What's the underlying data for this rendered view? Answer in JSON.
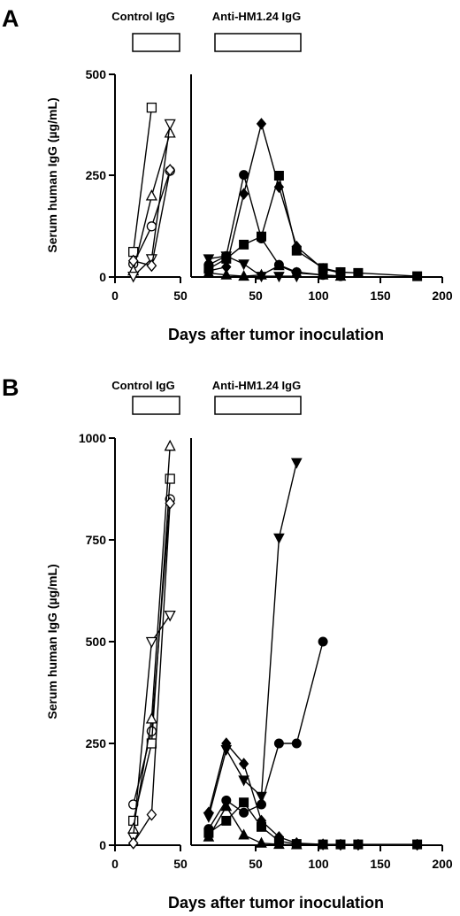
{
  "panels": [
    {
      "letter": "A",
      "legend": {
        "control": "Control IgG",
        "treatment": "Anti-HM1.24 IgG"
      },
      "ylabel": "Serum human IgG (µg/mL)",
      "xlabel": "Days after tumor inoculation",
      "ylim": [
        0,
        500
      ],
      "yticks": [
        "0",
        "250",
        "500"
      ],
      "left_ticks": [
        "0",
        "50"
      ],
      "right_ticks": [
        "50",
        "100",
        "150",
        "200"
      ]
    },
    {
      "letter": "B",
      "legend": {
        "control": "Control IgG",
        "treatment": "Anti-HM1.24 IgG"
      },
      "ylabel": "Serum human IgG (µg/mL)",
      "xlabel": "Days after tumor inoculation",
      "ylim": [
        0,
        1000
      ],
      "yticks": [
        "0",
        "250",
        "500",
        "750",
        "1000"
      ],
      "left_ticks": [
        "0",
        "50"
      ],
      "right_ticks": [
        "50",
        "100",
        "150",
        "200"
      ]
    }
  ],
  "chart_data": [
    {
      "type": "line",
      "xlabel": "Days after tumor inoculation",
      "ylabel": "Serum human IgG (µg/mL)",
      "ylim": [
        0,
        500
      ],
      "control": {
        "xlim": [
          0,
          50
        ],
        "series": [
          {
            "marker": "square-open",
            "x": [
              14,
              28
            ],
            "y": [
              62,
              418
            ]
          },
          {
            "marker": "circle-open",
            "x": [
              14,
              28,
              42
            ],
            "y": [
              32,
              125,
              262
            ]
          },
          {
            "marker": "triangle-open",
            "x": [
              14,
              28,
              42
            ],
            "y": [
              15,
              200,
              355
            ]
          },
          {
            "marker": "triangle-down-open",
            "x": [
              14,
              28,
              42
            ],
            "y": [
              2,
              45,
              378
            ]
          },
          {
            "marker": "diamond-open",
            "x": [
              14,
              28,
              42
            ],
            "y": [
              40,
              28,
              264
            ]
          }
        ]
      },
      "treatment": {
        "xlim": [
          0,
          200
        ],
        "series": [
          {
            "marker": "square-filled",
            "x": [
              14,
              28,
              42,
              56,
              70,
              84,
              105,
              119,
              133,
              180
            ],
            "y": [
              20,
              45,
              80,
              100,
              250,
              65,
              22,
              12,
              10,
              2
            ]
          },
          {
            "marker": "circle-filled",
            "x": [
              14,
              28,
              42,
              56,
              70,
              84,
              105,
              119
            ],
            "y": [
              30,
              52,
              252,
              95,
              30,
              12,
              5,
              2
            ]
          },
          {
            "marker": "diamond-filled",
            "x": [
              14,
              28,
              42,
              56,
              70,
              84,
              105,
              119
            ],
            "y": [
              15,
              25,
              205,
              378,
              222,
              75,
              20,
              10
            ]
          },
          {
            "marker": "triangle-filled",
            "x": [
              14,
              28,
              42,
              56,
              70,
              84,
              105,
              119
            ],
            "y": [
              10,
              5,
              2,
              5,
              28,
              10,
              5,
              2
            ]
          },
          {
            "marker": "triangle-down-filled",
            "x": [
              14,
              28,
              42,
              56,
              70,
              84
            ],
            "y": [
              45,
              52,
              32,
              2,
              2,
              2
            ]
          }
        ]
      }
    },
    {
      "type": "line",
      "xlabel": "Days after tumor inoculation",
      "ylabel": "Serum human IgG (µg/mL)",
      "ylim": [
        0,
        1000
      ],
      "control": {
        "xlim": [
          0,
          50
        ],
        "series": [
          {
            "marker": "circle-open",
            "x": [
              14,
              28,
              42
            ],
            "y": [
              100,
              280,
              850
            ]
          },
          {
            "marker": "square-open",
            "x": [
              14,
              28,
              42
            ],
            "y": [
              60,
              250,
              900
            ]
          },
          {
            "marker": "triangle-open",
            "x": [
              14,
              28,
              42
            ],
            "y": [
              40,
              310,
              980
            ]
          },
          {
            "marker": "triangle-down-open",
            "x": [
              14,
              28,
              42
            ],
            "y": [
              20,
              500,
              565
            ]
          },
          {
            "marker": "diamond-open",
            "x": [
              14,
              28,
              42
            ],
            "y": [
              5,
              75,
              840
            ]
          }
        ]
      },
      "treatment": {
        "xlim": [
          0,
          200
        ],
        "series": [
          {
            "marker": "triangle-down-filled",
            "x": [
              14,
              28,
              42,
              56,
              70,
              84
            ],
            "y": [
              70,
              235,
              160,
              120,
              755,
              940
            ]
          },
          {
            "marker": "circle-filled",
            "x": [
              14,
              28,
              42,
              56,
              70,
              84,
              105
            ],
            "y": [
              40,
              110,
              80,
              100,
              250,
              250,
              500
            ]
          },
          {
            "marker": "diamond-filled",
            "x": [
              14,
              28,
              42,
              56,
              70,
              84,
              105,
              119,
              133,
              180
            ],
            "y": [
              80,
              250,
              200,
              60,
              20,
              5,
              2,
              1,
              1,
              1
            ]
          },
          {
            "marker": "square-filled",
            "x": [
              14,
              28,
              42,
              56,
              70,
              84,
              105,
              119,
              133,
              180
            ],
            "y": [
              30,
              60,
              105,
              45,
              10,
              3,
              2,
              2,
              2,
              2
            ]
          },
          {
            "marker": "triangle-filled",
            "x": [
              14,
              28,
              42,
              56,
              70,
              84,
              105
            ],
            "y": [
              20,
              95,
              25,
              5,
              2,
              1,
              1
            ]
          }
        ]
      }
    }
  ]
}
